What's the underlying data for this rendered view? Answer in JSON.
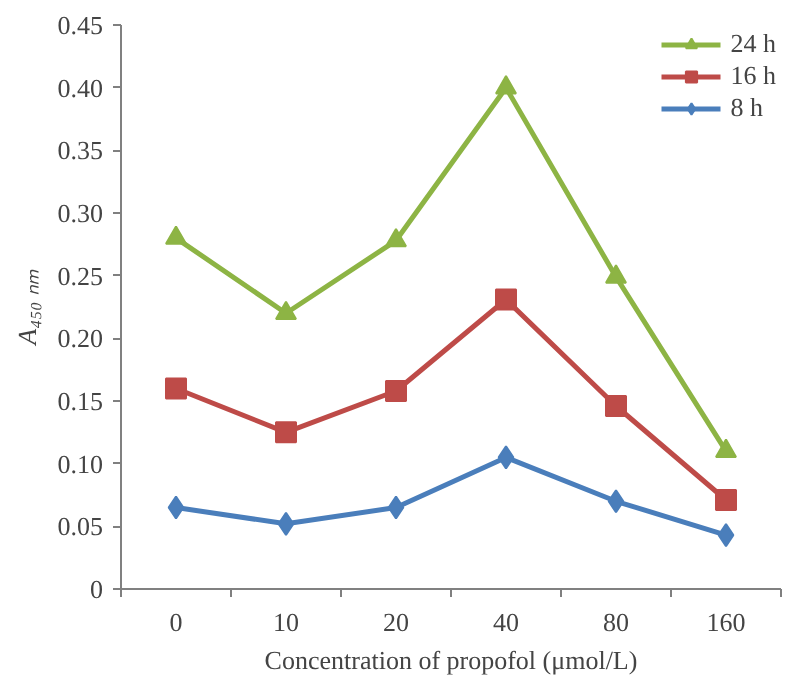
{
  "chart_data": {
    "type": "line",
    "xlabel": "Concentration of propofol (μmol/L)",
    "ylabel": "A₄₅₀ ₙₘ",
    "categories": [
      "0",
      "10",
      "20",
      "40",
      "80",
      "160"
    ],
    "series": [
      {
        "name": "24 h",
        "color": "#8db444",
        "marker": "triangle",
        "values": [
          0.28,
          0.22,
          0.278,
          0.4,
          0.249,
          0.11
        ]
      },
      {
        "name": "16 h",
        "color": "#be4b48",
        "marker": "square",
        "values": [
          0.16,
          0.125,
          0.158,
          0.231,
          0.146,
          0.071
        ]
      },
      {
        "name": "8 h",
        "color": "#4a7ebb",
        "marker": "diamond",
        "values": [
          0.065,
          0.052,
          0.065,
          0.105,
          0.07,
          0.043
        ]
      }
    ],
    "ylim": [
      0,
      0.45
    ],
    "yticks": [
      {
        "value": 0,
        "label": "0"
      },
      {
        "value": 0.05,
        "label": "0.05"
      },
      {
        "value": 0.1,
        "label": "0.10"
      },
      {
        "value": 0.15,
        "label": "0.15"
      },
      {
        "value": 0.2,
        "label": "0.20"
      },
      {
        "value": 0.25,
        "label": "0.25"
      },
      {
        "value": 0.3,
        "label": "0.30"
      },
      {
        "value": 0.35,
        "label": "0.35"
      },
      {
        "value": 0.4,
        "label": "0.40"
      },
      {
        "value": 0.45,
        "label": "0.45"
      }
    ],
    "grid": false,
    "legend": "top right"
  }
}
